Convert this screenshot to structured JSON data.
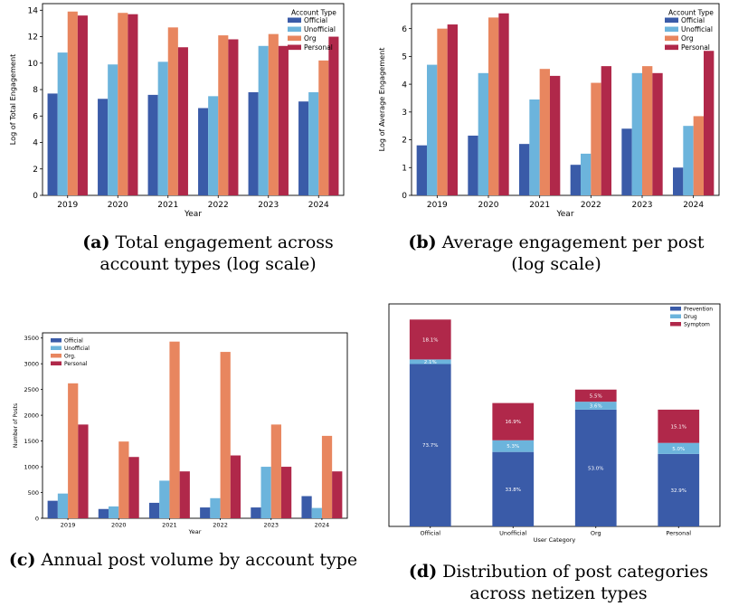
{
  "colors": {
    "Official": "#3a5ba8",
    "Unofficial": "#6cb4dc",
    "Org": "#e8865f",
    "Personal": "#b0284a",
    "Prevention": "#3a5ba8",
    "Drug": "#6cb4dc",
    "Symptom": "#b0284a"
  },
  "captions": {
    "a_label": "(a)",
    "a_text": "Total engagement across account types (log scale)",
    "b_label": "(b)",
    "b_text": "Average engagement per post (log scale)",
    "c_label": "(c)",
    "c_text": "Annual post volume by account type",
    "d_label": "(d)",
    "d_text": "Distribution of post categories across netizen types"
  },
  "chart_data": [
    {
      "id": "a",
      "type": "bar",
      "categories": [
        "2019",
        "2020",
        "2021",
        "2022",
        "2023",
        "2024"
      ],
      "series": [
        {
          "name": "Official",
          "color": "Official",
          "values": [
            7.7,
            7.3,
            7.6,
            6.6,
            7.8,
            7.1
          ]
        },
        {
          "name": "Unofficial",
          "color": "Unofficial",
          "values": [
            10.8,
            9.9,
            10.1,
            7.5,
            11.3,
            7.8
          ]
        },
        {
          "name": "Org",
          "color": "Org",
          "values": [
            13.9,
            13.8,
            12.7,
            12.1,
            12.2,
            10.2
          ]
        },
        {
          "name": "Personal",
          "color": "Personal",
          "values": [
            13.6,
            13.7,
            11.2,
            11.8,
            11.3,
            12.0
          ]
        }
      ],
      "xlabel": "Year",
      "ylabel": "Log of Total Engagement",
      "ylim": [
        0,
        14.5
      ],
      "yticks": [
        0,
        2,
        4,
        6,
        8,
        10,
        12,
        14
      ],
      "legend_title": "Account Type",
      "legend_position": "top-right"
    },
    {
      "id": "b",
      "type": "bar",
      "categories": [
        "2019",
        "2020",
        "2021",
        "2022",
        "2023",
        "2024"
      ],
      "series": [
        {
          "name": "Official",
          "color": "Official",
          "values": [
            1.8,
            2.15,
            1.85,
            1.1,
            2.4,
            1.0
          ]
        },
        {
          "name": "Unofficial",
          "color": "Unofficial",
          "values": [
            4.7,
            4.4,
            3.45,
            1.5,
            4.4,
            2.5
          ]
        },
        {
          "name": "Org",
          "color": "Org",
          "values": [
            6.0,
            6.4,
            4.55,
            4.05,
            4.65,
            2.85
          ]
        },
        {
          "name": "Personal",
          "color": "Personal",
          "values": [
            6.15,
            6.55,
            4.3,
            4.65,
            4.4,
            5.2
          ]
        }
      ],
      "xlabel": "Year",
      "ylabel": "Log of Average Engagement",
      "ylim": [
        0,
        6.9
      ],
      "yticks": [
        0,
        1,
        2,
        3,
        4,
        5,
        6
      ],
      "legend_title": "Account Type",
      "legend_position": "top-right"
    },
    {
      "id": "c",
      "type": "bar",
      "categories": [
        "2019",
        "2020",
        "2021",
        "2022",
        "2023",
        "2024"
      ],
      "series": [
        {
          "name": "Official",
          "color": "Official",
          "values": [
            340,
            180,
            300,
            210,
            210,
            430
          ]
        },
        {
          "name": "Unofficial",
          "color": "Unofficial",
          "values": [
            480,
            230,
            730,
            390,
            1000,
            200
          ]
        },
        {
          "name": "Org.",
          "color": "Org",
          "values": [
            2620,
            1490,
            3430,
            3230,
            1820,
            1600
          ]
        },
        {
          "name": "Personal",
          "color": "Personal",
          "values": [
            1820,
            1190,
            910,
            1220,
            1000,
            910
          ]
        }
      ],
      "xlabel": "Year",
      "ylabel": "Number of Posts",
      "ylim": [
        0,
        3600
      ],
      "yticks": [
        0,
        500,
        1000,
        1500,
        2000,
        2500,
        3000,
        3500
      ],
      "legend_title": "",
      "legend_position": "top-left"
    },
    {
      "id": "d",
      "type": "bar",
      "stacked": true,
      "categories": [
        "Official",
        "Unofficial",
        "Org",
        "Personal"
      ],
      "series": [
        {
          "name": "Prevention",
          "color": "Prevention",
          "values": [
            73.7,
            33.8,
            53.0,
            32.9
          ],
          "labels": [
            "73.7%",
            "33.8%",
            "53.0%",
            "32.9%"
          ]
        },
        {
          "name": "Drug",
          "color": "Drug",
          "values": [
            2.1,
            5.3,
            3.6,
            5.0
          ],
          "labels": [
            "2.1%",
            "5.3%",
            "3.6%",
            "5.0%"
          ]
        },
        {
          "name": "Symptom",
          "color": "Symptom",
          "values": [
            18.1,
            16.9,
            5.5,
            15.1
          ],
          "labels": [
            "18.1%",
            "16.9%",
            "5.5%",
            "15.1%"
          ]
        }
      ],
      "xlabel": "User Category",
      "ylabel": "",
      "ylim": [
        0,
        101
      ],
      "legend_title": "",
      "legend_position": "top-right"
    }
  ]
}
